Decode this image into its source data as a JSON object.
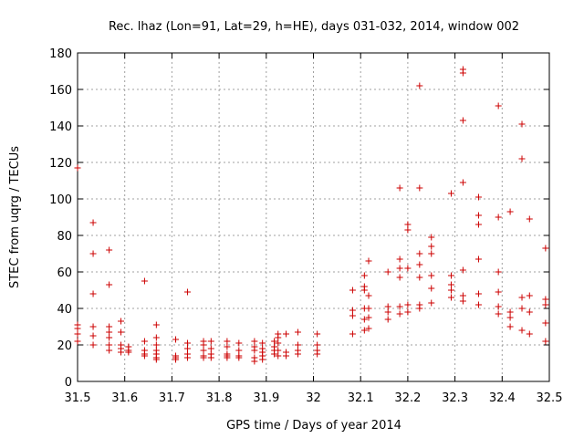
{
  "chart_data": {
    "type": "scatter",
    "title": "Rec. lhaz (Lon=91, Lat=29, h=HE), days 031-032, 2014, window 002",
    "xlabel": "GPS time / Days of year 2014",
    "ylabel": "STEC from uqrg / TECUs",
    "xlim": [
      31.5,
      32.5
    ],
    "ylim": [
      0,
      180
    ],
    "xticks": [
      31.5,
      31.6,
      31.7,
      31.8,
      31.9,
      32.0,
      32.1,
      32.2,
      32.3,
      32.4,
      32.5
    ],
    "xtick_labels": [
      "31.5",
      "31.6",
      "31.7",
      "31.8",
      "31.9",
      "32",
      "32.1",
      "32.2",
      "32.3",
      "32.4",
      "32.5"
    ],
    "yticks": [
      0,
      20,
      40,
      60,
      80,
      100,
      120,
      140,
      160,
      180
    ],
    "ytick_labels": [
      "0",
      "20",
      "40",
      "60",
      "80",
      "100",
      "120",
      "140",
      "160",
      "180"
    ],
    "grid": true,
    "marker": "+",
    "marker_color": "#cc0000",
    "series": [
      {
        "name": "STEC",
        "points": [
          [
            31.5,
            117
          ],
          [
            31.5,
            31
          ],
          [
            31.5,
            29
          ],
          [
            31.5,
            26
          ],
          [
            31.5,
            22
          ],
          [
            31.533,
            87
          ],
          [
            31.533,
            70
          ],
          [
            31.533,
            48
          ],
          [
            31.533,
            30
          ],
          [
            31.533,
            25
          ],
          [
            31.533,
            20
          ],
          [
            31.567,
            72
          ],
          [
            31.567,
            53
          ],
          [
            31.567,
            30
          ],
          [
            31.567,
            27
          ],
          [
            31.567,
            24
          ],
          [
            31.567,
            20
          ],
          [
            31.567,
            17
          ],
          [
            31.592,
            33
          ],
          [
            31.592,
            27
          ],
          [
            31.592,
            20
          ],
          [
            31.592,
            18
          ],
          [
            31.592,
            16
          ],
          [
            31.608,
            19
          ],
          [
            31.608,
            17
          ],
          [
            31.608,
            16
          ],
          [
            31.642,
            55
          ],
          [
            31.642,
            22
          ],
          [
            31.642,
            17
          ],
          [
            31.642,
            15
          ],
          [
            31.642,
            14
          ],
          [
            31.667,
            31
          ],
          [
            31.667,
            24
          ],
          [
            31.667,
            20
          ],
          [
            31.667,
            17
          ],
          [
            31.667,
            15
          ],
          [
            31.667,
            13
          ],
          [
            31.667,
            12
          ],
          [
            31.708,
            23
          ],
          [
            31.708,
            14
          ],
          [
            31.708,
            13
          ],
          [
            31.708,
            12
          ],
          [
            31.733,
            49
          ],
          [
            31.733,
            21
          ],
          [
            31.733,
            18
          ],
          [
            31.733,
            15
          ],
          [
            31.733,
            13
          ],
          [
            31.767,
            22
          ],
          [
            31.767,
            20
          ],
          [
            31.767,
            17
          ],
          [
            31.767,
            14
          ],
          [
            31.767,
            13
          ],
          [
            31.783,
            22
          ],
          [
            31.783,
            18
          ],
          [
            31.783,
            15
          ],
          [
            31.783,
            13
          ],
          [
            31.817,
            22
          ],
          [
            31.817,
            19
          ],
          [
            31.817,
            15
          ],
          [
            31.817,
            14
          ],
          [
            31.817,
            13
          ],
          [
            31.842,
            21
          ],
          [
            31.842,
            17
          ],
          [
            31.842,
            14
          ],
          [
            31.842,
            13
          ],
          [
            31.875,
            22
          ],
          [
            31.875,
            19
          ],
          [
            31.875,
            17
          ],
          [
            31.875,
            13
          ],
          [
            31.875,
            11
          ],
          [
            31.892,
            21
          ],
          [
            31.892,
            18
          ],
          [
            31.892,
            16
          ],
          [
            31.892,
            14
          ],
          [
            31.892,
            12
          ],
          [
            31.917,
            22
          ],
          [
            31.917,
            19
          ],
          [
            31.917,
            17
          ],
          [
            31.917,
            15
          ],
          [
            31.925,
            26
          ],
          [
            31.925,
            24
          ],
          [
            31.925,
            21
          ],
          [
            31.925,
            17
          ],
          [
            31.925,
            14
          ],
          [
            31.942,
            26
          ],
          [
            31.942,
            16
          ],
          [
            31.942,
            14
          ],
          [
            31.967,
            27
          ],
          [
            31.967,
            20
          ],
          [
            31.967,
            17
          ],
          [
            31.967,
            15
          ],
          [
            32.008,
            26
          ],
          [
            32.008,
            20
          ],
          [
            32.008,
            17
          ],
          [
            32.008,
            15
          ],
          [
            32.083,
            50
          ],
          [
            32.083,
            39
          ],
          [
            32.083,
            36
          ],
          [
            32.083,
            26
          ],
          [
            32.108,
            58
          ],
          [
            32.108,
            52
          ],
          [
            32.108,
            50
          ],
          [
            32.108,
            40
          ],
          [
            32.108,
            34
          ],
          [
            32.108,
            28
          ],
          [
            32.117,
            66
          ],
          [
            32.117,
            47
          ],
          [
            32.117,
            40
          ],
          [
            32.117,
            35
          ],
          [
            32.117,
            29
          ],
          [
            32.158,
            60
          ],
          [
            32.158,
            41
          ],
          [
            32.158,
            38
          ],
          [
            32.158,
            34
          ],
          [
            32.183,
            106
          ],
          [
            32.183,
            67
          ],
          [
            32.183,
            62
          ],
          [
            32.183,
            57
          ],
          [
            32.183,
            41
          ],
          [
            32.183,
            37
          ],
          [
            32.2,
            86
          ],
          [
            32.2,
            83
          ],
          [
            32.2,
            62
          ],
          [
            32.2,
            42
          ],
          [
            32.2,
            38
          ],
          [
            32.225,
            162
          ],
          [
            32.225,
            106
          ],
          [
            32.225,
            70
          ],
          [
            32.225,
            64
          ],
          [
            32.225,
            57
          ],
          [
            32.225,
            42
          ],
          [
            32.225,
            40
          ],
          [
            32.25,
            79
          ],
          [
            32.25,
            74
          ],
          [
            32.25,
            70
          ],
          [
            32.25,
            58
          ],
          [
            32.25,
            51
          ],
          [
            32.25,
            43
          ],
          [
            32.292,
            103
          ],
          [
            32.292,
            58
          ],
          [
            32.292,
            53
          ],
          [
            32.292,
            50
          ],
          [
            32.292,
            46
          ],
          [
            32.317,
            171
          ],
          [
            32.317,
            169
          ],
          [
            32.317,
            143
          ],
          [
            32.317,
            109
          ],
          [
            32.317,
            61
          ],
          [
            32.317,
            47
          ],
          [
            32.317,
            44
          ],
          [
            32.35,
            101
          ],
          [
            32.35,
            91
          ],
          [
            32.35,
            86
          ],
          [
            32.35,
            67
          ],
          [
            32.35,
            48
          ],
          [
            32.35,
            42
          ],
          [
            32.392,
            151
          ],
          [
            32.392,
            90
          ],
          [
            32.392,
            60
          ],
          [
            32.392,
            49
          ],
          [
            32.392,
            41
          ],
          [
            32.392,
            37
          ],
          [
            32.417,
            93
          ],
          [
            32.417,
            38
          ],
          [
            32.417,
            35
          ],
          [
            32.417,
            30
          ],
          [
            32.442,
            141
          ],
          [
            32.442,
            122
          ],
          [
            32.442,
            46
          ],
          [
            32.442,
            40
          ],
          [
            32.442,
            28
          ],
          [
            32.458,
            89
          ],
          [
            32.458,
            47
          ],
          [
            32.458,
            38
          ],
          [
            32.458,
            26
          ],
          [
            32.492,
            73
          ],
          [
            32.492,
            45
          ],
          [
            32.492,
            42
          ],
          [
            32.492,
            32
          ],
          [
            32.492,
            22
          ]
        ]
      }
    ]
  }
}
